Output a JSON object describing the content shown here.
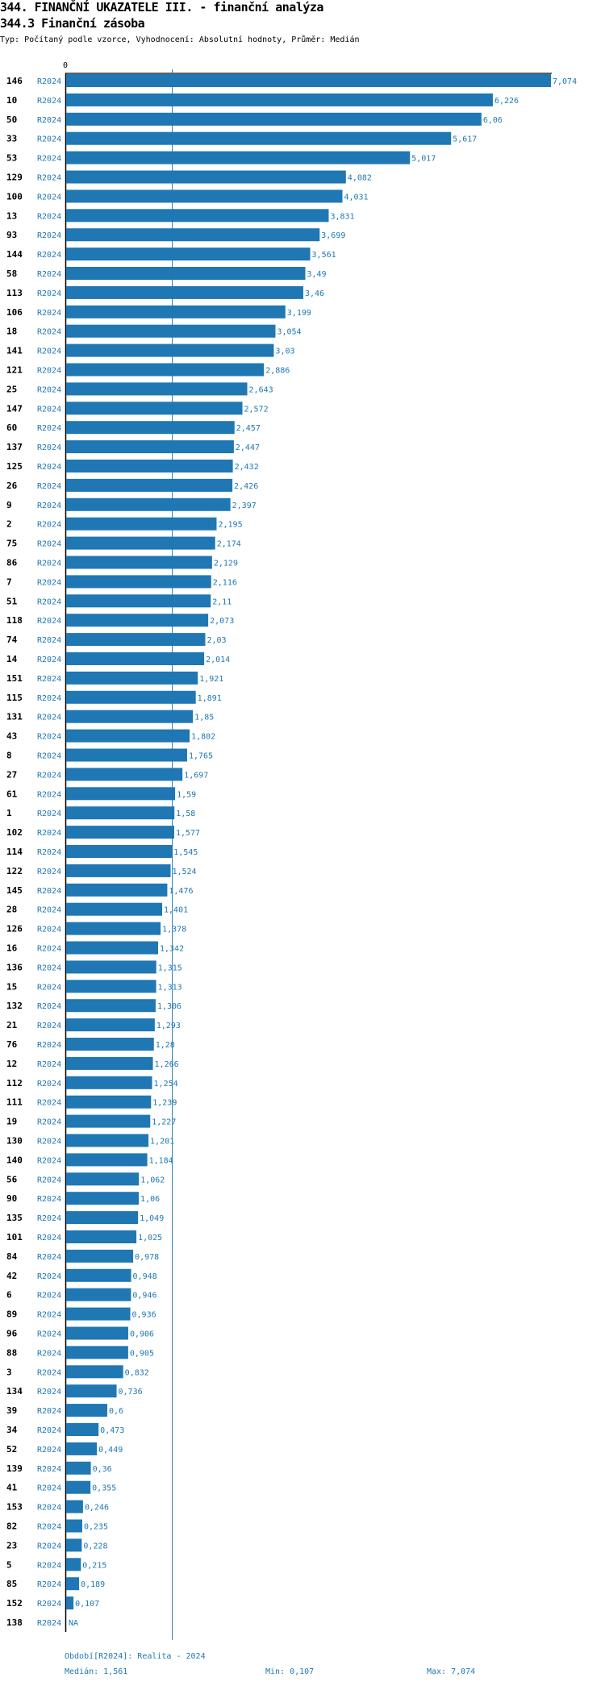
{
  "header": {
    "title": "344. FINANČNÍ UKAZATELE III. - finanční analýza",
    "subtitle": "344.3 Finanční zásoba",
    "description": "Typ: Počítaný podle vzorce, Vyhodnocení: Absolutní hodnoty, Průměr: Medián"
  },
  "chart_data": {
    "type": "bar",
    "orientation": "horizontal",
    "colors": {
      "bar": "#1f77b4",
      "label": "#1f77b4",
      "median_line": "#1f77b4"
    },
    "axis_zero_label": "0",
    "xlim": [
      0,
      7.074
    ],
    "median": 1.561,
    "rows": [
      {
        "id": "146",
        "period": "R2024",
        "value": 7.074,
        "label": "7,074"
      },
      {
        "id": "10",
        "period": "R2024",
        "value": 6.226,
        "label": "6,226"
      },
      {
        "id": "50",
        "period": "R2024",
        "value": 6.06,
        "label": "6,06"
      },
      {
        "id": "33",
        "period": "R2024",
        "value": 5.617,
        "label": "5,617"
      },
      {
        "id": "53",
        "period": "R2024",
        "value": 5.017,
        "label": "5,017"
      },
      {
        "id": "129",
        "period": "R2024",
        "value": 4.082,
        "label": "4,082"
      },
      {
        "id": "100",
        "period": "R2024",
        "value": 4.031,
        "label": "4,031"
      },
      {
        "id": "13",
        "period": "R2024",
        "value": 3.831,
        "label": "3,831"
      },
      {
        "id": "93",
        "period": "R2024",
        "value": 3.699,
        "label": "3,699"
      },
      {
        "id": "144",
        "period": "R2024",
        "value": 3.561,
        "label": "3,561"
      },
      {
        "id": "58",
        "period": "R2024",
        "value": 3.49,
        "label": "3,49"
      },
      {
        "id": "113",
        "period": "R2024",
        "value": 3.46,
        "label": "3,46"
      },
      {
        "id": "106",
        "period": "R2024",
        "value": 3.199,
        "label": "3,199"
      },
      {
        "id": "18",
        "period": "R2024",
        "value": 3.054,
        "label": "3,054"
      },
      {
        "id": "141",
        "period": "R2024",
        "value": 3.03,
        "label": "3,03"
      },
      {
        "id": "121",
        "period": "R2024",
        "value": 2.886,
        "label": "2,886"
      },
      {
        "id": "25",
        "period": "R2024",
        "value": 2.643,
        "label": "2,643"
      },
      {
        "id": "147",
        "period": "R2024",
        "value": 2.572,
        "label": "2,572"
      },
      {
        "id": "60",
        "period": "R2024",
        "value": 2.457,
        "label": "2,457"
      },
      {
        "id": "137",
        "period": "R2024",
        "value": 2.447,
        "label": "2,447"
      },
      {
        "id": "125",
        "period": "R2024",
        "value": 2.432,
        "label": "2,432"
      },
      {
        "id": "26",
        "period": "R2024",
        "value": 2.426,
        "label": "2,426"
      },
      {
        "id": "9",
        "period": "R2024",
        "value": 2.397,
        "label": "2,397"
      },
      {
        "id": "2",
        "period": "R2024",
        "value": 2.195,
        "label": "2,195"
      },
      {
        "id": "75",
        "period": "R2024",
        "value": 2.174,
        "label": "2,174"
      },
      {
        "id": "86",
        "period": "R2024",
        "value": 2.129,
        "label": "2,129"
      },
      {
        "id": "7",
        "period": "R2024",
        "value": 2.116,
        "label": "2,116"
      },
      {
        "id": "51",
        "period": "R2024",
        "value": 2.11,
        "label": "2,11"
      },
      {
        "id": "118",
        "period": "R2024",
        "value": 2.073,
        "label": "2,073"
      },
      {
        "id": "74",
        "period": "R2024",
        "value": 2.03,
        "label": "2,03"
      },
      {
        "id": "14",
        "period": "R2024",
        "value": 2.014,
        "label": "2,014"
      },
      {
        "id": "151",
        "period": "R2024",
        "value": 1.921,
        "label": "1,921"
      },
      {
        "id": "115",
        "period": "R2024",
        "value": 1.891,
        "label": "1,891"
      },
      {
        "id": "131",
        "period": "R2024",
        "value": 1.85,
        "label": "1,85"
      },
      {
        "id": "43",
        "period": "R2024",
        "value": 1.802,
        "label": "1,802"
      },
      {
        "id": "8",
        "period": "R2024",
        "value": 1.765,
        "label": "1,765"
      },
      {
        "id": "27",
        "period": "R2024",
        "value": 1.697,
        "label": "1,697"
      },
      {
        "id": "61",
        "period": "R2024",
        "value": 1.59,
        "label": "1,59"
      },
      {
        "id": "1",
        "period": "R2024",
        "value": 1.58,
        "label": "1,58"
      },
      {
        "id": "102",
        "period": "R2024",
        "value": 1.577,
        "label": "1,577"
      },
      {
        "id": "114",
        "period": "R2024",
        "value": 1.545,
        "label": "1,545"
      },
      {
        "id": "122",
        "period": "R2024",
        "value": 1.524,
        "label": "1,524"
      },
      {
        "id": "145",
        "period": "R2024",
        "value": 1.476,
        "label": "1,476"
      },
      {
        "id": "28",
        "period": "R2024",
        "value": 1.401,
        "label": "1,401"
      },
      {
        "id": "126",
        "period": "R2024",
        "value": 1.378,
        "label": "1,378"
      },
      {
        "id": "16",
        "period": "R2024",
        "value": 1.342,
        "label": "1,342"
      },
      {
        "id": "136",
        "period": "R2024",
        "value": 1.315,
        "label": "1,315"
      },
      {
        "id": "15",
        "period": "R2024",
        "value": 1.313,
        "label": "1,313"
      },
      {
        "id": "132",
        "period": "R2024",
        "value": 1.306,
        "label": "1,306"
      },
      {
        "id": "21",
        "period": "R2024",
        "value": 1.293,
        "label": "1,293"
      },
      {
        "id": "76",
        "period": "R2024",
        "value": 1.28,
        "label": "1,28"
      },
      {
        "id": "12",
        "period": "R2024",
        "value": 1.266,
        "label": "1,266"
      },
      {
        "id": "112",
        "period": "R2024",
        "value": 1.254,
        "label": "1,254"
      },
      {
        "id": "111",
        "period": "R2024",
        "value": 1.239,
        "label": "1,239"
      },
      {
        "id": "19",
        "period": "R2024",
        "value": 1.227,
        "label": "1,227"
      },
      {
        "id": "130",
        "period": "R2024",
        "value": 1.201,
        "label": "1,201"
      },
      {
        "id": "140",
        "period": "R2024",
        "value": 1.184,
        "label": "1,184"
      },
      {
        "id": "56",
        "period": "R2024",
        "value": 1.062,
        "label": "1,062"
      },
      {
        "id": "90",
        "period": "R2024",
        "value": 1.06,
        "label": "1,06"
      },
      {
        "id": "135",
        "period": "R2024",
        "value": 1.049,
        "label": "1,049"
      },
      {
        "id": "101",
        "period": "R2024",
        "value": 1.025,
        "label": "1,025"
      },
      {
        "id": "84",
        "period": "R2024",
        "value": 0.978,
        "label": "0,978"
      },
      {
        "id": "42",
        "period": "R2024",
        "value": 0.948,
        "label": "0,948"
      },
      {
        "id": "6",
        "period": "R2024",
        "value": 0.946,
        "label": "0,946"
      },
      {
        "id": "89",
        "period": "R2024",
        "value": 0.936,
        "label": "0,936"
      },
      {
        "id": "96",
        "period": "R2024",
        "value": 0.906,
        "label": "0,906"
      },
      {
        "id": "88",
        "period": "R2024",
        "value": 0.905,
        "label": "0,905"
      },
      {
        "id": "3",
        "period": "R2024",
        "value": 0.832,
        "label": "0,832"
      },
      {
        "id": "134",
        "period": "R2024",
        "value": 0.736,
        "label": "0,736"
      },
      {
        "id": "39",
        "period": "R2024",
        "value": 0.6,
        "label": "0,6"
      },
      {
        "id": "34",
        "period": "R2024",
        "value": 0.473,
        "label": "0,473"
      },
      {
        "id": "52",
        "period": "R2024",
        "value": 0.449,
        "label": "0,449"
      },
      {
        "id": "139",
        "period": "R2024",
        "value": 0.36,
        "label": "0,36"
      },
      {
        "id": "41",
        "period": "R2024",
        "value": 0.355,
        "label": "0,355"
      },
      {
        "id": "153",
        "period": "R2024",
        "value": 0.246,
        "label": "0,246"
      },
      {
        "id": "82",
        "period": "R2024",
        "value": 0.235,
        "label": "0,235"
      },
      {
        "id": "23",
        "period": "R2024",
        "value": 0.228,
        "label": "0,228"
      },
      {
        "id": "5",
        "period": "R2024",
        "value": 0.215,
        "label": "0,215"
      },
      {
        "id": "85",
        "period": "R2024",
        "value": 0.189,
        "label": "0,189"
      },
      {
        "id": "152",
        "period": "R2024",
        "value": 0.107,
        "label": "0,107"
      },
      {
        "id": "138",
        "period": "R2024",
        "value": null,
        "label": "NA"
      }
    ]
  },
  "footer": {
    "period": "Období[R2024]: Realita - 2024",
    "median": "Medián: 1,561",
    "min": "Min: 0,107",
    "max": "Max: 7,074"
  }
}
